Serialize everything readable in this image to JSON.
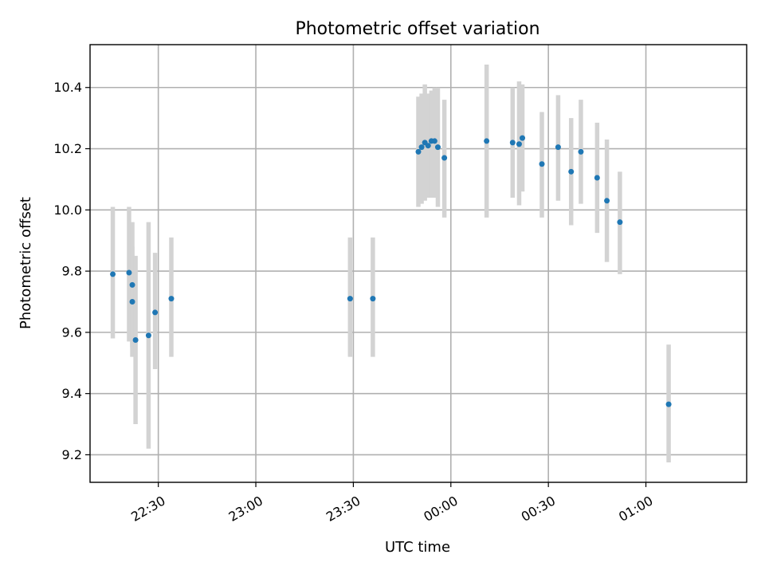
{
  "chart_data": {
    "type": "scatter",
    "title": "Photometric offset variation",
    "xlabel": "UTC time",
    "ylabel": "Photometric offset",
    "x_axis_type": "time",
    "x_start": "22:00",
    "xlim": [
      "22:09",
      "01:31"
    ],
    "ylim": [
      9.11,
      10.54
    ],
    "x_ticks": [
      "22:30",
      "23:00",
      "23:30",
      "00:00",
      "00:30",
      "01:00"
    ],
    "y_ticks": [
      9.2,
      9.4,
      9.6,
      9.8,
      10.0,
      10.2,
      10.4
    ],
    "grid": true,
    "marker_color": "#1f77b4",
    "errorbar_color": "#d3d3d3",
    "points": [
      {
        "x": "22:16",
        "y": 9.79,
        "ylo": 9.58,
        "yhi": 10.01
      },
      {
        "x": "22:21",
        "y": 9.795,
        "ylo": 9.57,
        "yhi": 10.01
      },
      {
        "x": "22:22",
        "y": 9.755,
        "ylo": 9.55,
        "yhi": 9.96
      },
      {
        "x": "22:22",
        "y": 9.7,
        "ylo": 9.52,
        "yhi": 9.88
      },
      {
        "x": "22:23",
        "y": 9.575,
        "ylo": 9.3,
        "yhi": 9.85
      },
      {
        "x": "22:27",
        "y": 9.59,
        "ylo": 9.22,
        "yhi": 9.96
      },
      {
        "x": "22:29",
        "y": 9.665,
        "ylo": 9.48,
        "yhi": 9.86
      },
      {
        "x": "22:34",
        "y": 9.71,
        "ylo": 9.52,
        "yhi": 9.91
      },
      {
        "x": "23:29",
        "y": 9.71,
        "ylo": 9.52,
        "yhi": 9.91
      },
      {
        "x": "23:36",
        "y": 9.71,
        "ylo": 9.52,
        "yhi": 9.91
      },
      {
        "x": "23:50",
        "y": 10.19,
        "ylo": 10.01,
        "yhi": 10.37
      },
      {
        "x": "23:51",
        "y": 10.205,
        "ylo": 10.02,
        "yhi": 10.38
      },
      {
        "x": "23:52",
        "y": 10.22,
        "ylo": 10.03,
        "yhi": 10.41
      },
      {
        "x": "23:53",
        "y": 10.21,
        "ylo": 10.04,
        "yhi": 10.38
      },
      {
        "x": "23:54",
        "y": 10.225,
        "ylo": 10.04,
        "yhi": 10.39
      },
      {
        "x": "23:55",
        "y": 10.225,
        "ylo": 10.04,
        "yhi": 10.4
      },
      {
        "x": "23:56",
        "y": 10.205,
        "ylo": 10.01,
        "yhi": 10.4
      },
      {
        "x": "23:58",
        "y": 10.17,
        "ylo": 9.975,
        "yhi": 10.36
      },
      {
        "x": "00:11",
        "y": 10.225,
        "ylo": 9.975,
        "yhi": 10.475
      },
      {
        "x": "00:19",
        "y": 10.22,
        "ylo": 10.04,
        "yhi": 10.4
      },
      {
        "x": "00:21",
        "y": 10.215,
        "ylo": 10.015,
        "yhi": 10.42
      },
      {
        "x": "00:22",
        "y": 10.235,
        "ylo": 10.06,
        "yhi": 10.41
      },
      {
        "x": "00:28",
        "y": 10.15,
        "ylo": 9.975,
        "yhi": 10.32
      },
      {
        "x": "00:33",
        "y": 10.205,
        "ylo": 10.03,
        "yhi": 10.375
      },
      {
        "x": "00:37",
        "y": 10.125,
        "ylo": 9.95,
        "yhi": 10.3
      },
      {
        "x": "00:40",
        "y": 10.19,
        "ylo": 10.02,
        "yhi": 10.36
      },
      {
        "x": "00:45",
        "y": 10.105,
        "ylo": 9.925,
        "yhi": 10.285
      },
      {
        "x": "00:48",
        "y": 10.03,
        "ylo": 9.83,
        "yhi": 10.23
      },
      {
        "x": "00:52",
        "y": 9.96,
        "ylo": 9.79,
        "yhi": 10.125
      },
      {
        "x": "01:07",
        "y": 9.365,
        "ylo": 9.175,
        "yhi": 9.56
      }
    ]
  }
}
